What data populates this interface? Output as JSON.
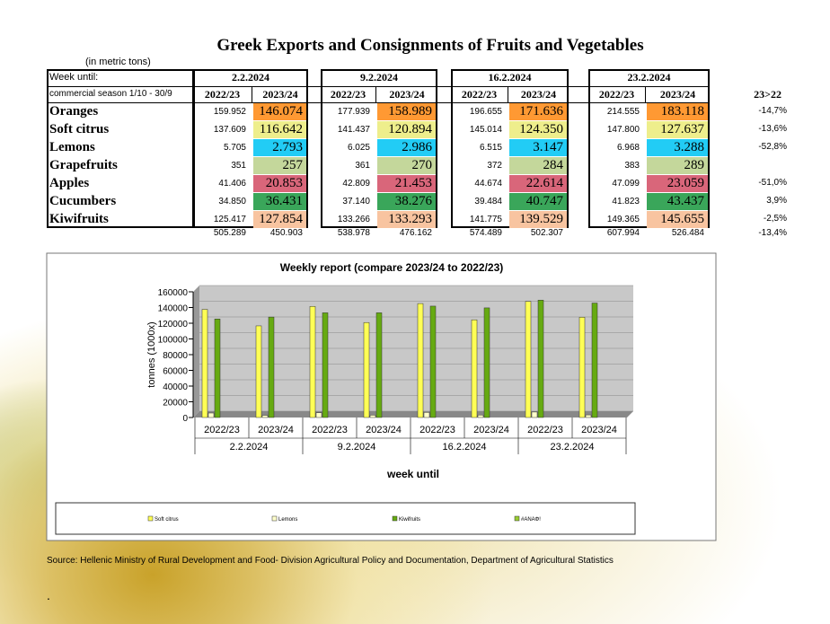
{
  "header": {
    "title": "Greek Exports and Consignments of Fruits and Vegetables",
    "unit": "(in metric tons)"
  },
  "table": {
    "week_label": "Week until:",
    "weeks": [
      "2.2.2024",
      "9.2.2024",
      "16.2.2024",
      "23.2.2024"
    ],
    "season_label": "commercial season 1/10 - 30/9",
    "seasons": [
      "2022/23",
      "2023/24"
    ],
    "change_label": "23>22",
    "rows": [
      {
        "name": "Oranges",
        "color": "#ff9933",
        "values": [
          "159.952",
          "146.074",
          "177.939",
          "158.989",
          "196.655",
          "171.636",
          "214.555",
          "183.118"
        ],
        "change": "-14,7%"
      },
      {
        "name": "Soft citrus",
        "color": "#eeee8c",
        "values": [
          "137.609",
          "116.642",
          "141.437",
          "120.894",
          "145.014",
          "124.350",
          "147.800",
          "127.637"
        ],
        "change": "-13,6%"
      },
      {
        "name": "Lemons",
        "color": "#22ccf5",
        "values": [
          "5.705",
          "2.793",
          "6.025",
          "2.986",
          "6.515",
          "3.147",
          "6.968",
          "3.288"
        ],
        "change": "-52,8%"
      },
      {
        "name": "Grapefruits",
        "color": "#c4d79b",
        "values": [
          "351",
          "257",
          "361",
          "270",
          "372",
          "284",
          "383",
          "289"
        ],
        "change": null
      },
      {
        "name": "Apples",
        "color": "#d9667a",
        "values": [
          "41.406",
          "20.853",
          "42.809",
          "21.453",
          "44.674",
          "22.614",
          "47.099",
          "23.059"
        ],
        "change": "-51,0%"
      },
      {
        "name": "Cucumbers",
        "color": "#3aa65a",
        "values": [
          "34.850",
          "36.431",
          "37.140",
          "38.276",
          "39.484",
          "40.747",
          "41.823",
          "43.437"
        ],
        "change": "3,9%"
      },
      {
        "name": "Kiwifruits",
        "color": "#f8c4a0",
        "values": [
          "125.417",
          "127.854",
          "133.266",
          "133.293",
          "141.775",
          "139.529",
          "149.365",
          "145.655"
        ],
        "change": "-2,5%"
      }
    ],
    "totals": {
      "values": [
        "505.289",
        "450.903",
        "538.978",
        "476.162",
        "574.489",
        "502.307",
        "607.994",
        "526.484"
      ],
      "change": "-13,4%"
    }
  },
  "chart_data": {
    "type": "bar",
    "title": "Weekly report (compare 2023/24 to 2022/23)",
    "y_label": "tonnes (1000x)",
    "x_label": "week until",
    "categories": [
      "2022/23",
      "2023/24",
      "2022/23",
      "2023/24",
      "2022/23",
      "2023/24",
      "2022/23",
      "2023/24"
    ],
    "groups": [
      "2.2.2024",
      "9.2.2024",
      "16.2.2024",
      "23.2.2024"
    ],
    "series": [
      {
        "name": "Soft citrus",
        "color": "#ffff55",
        "values": [
          137609,
          116642,
          141437,
          120894,
          145014,
          124350,
          147800,
          127637
        ]
      },
      {
        "name": "Lemons",
        "color": "#ffffcc",
        "values": [
          5705,
          2793,
          6025,
          2986,
          6515,
          3147,
          6968,
          3288
        ]
      },
      {
        "name": "Kiwifruits",
        "color": "#66aa11",
        "values": [
          125417,
          127854,
          133266,
          133293,
          141775,
          139529,
          149365,
          145655
        ]
      },
      {
        "name": "#ΑΝΑΦ!",
        "color": "#99cc33",
        "values": [
          null,
          null,
          null,
          null,
          null,
          null,
          null,
          null
        ]
      }
    ],
    "ylim": [
      0,
      160000
    ],
    "yticks": [
      0,
      20000,
      40000,
      60000,
      80000,
      100000,
      120000,
      140000,
      160000
    ]
  },
  "footer": {
    "source": "Source: Hellenic Ministry of Rural Development and Food- Division Agricultural Policy and Documentation, Department of Agricultural Statistics",
    "mark": "."
  }
}
